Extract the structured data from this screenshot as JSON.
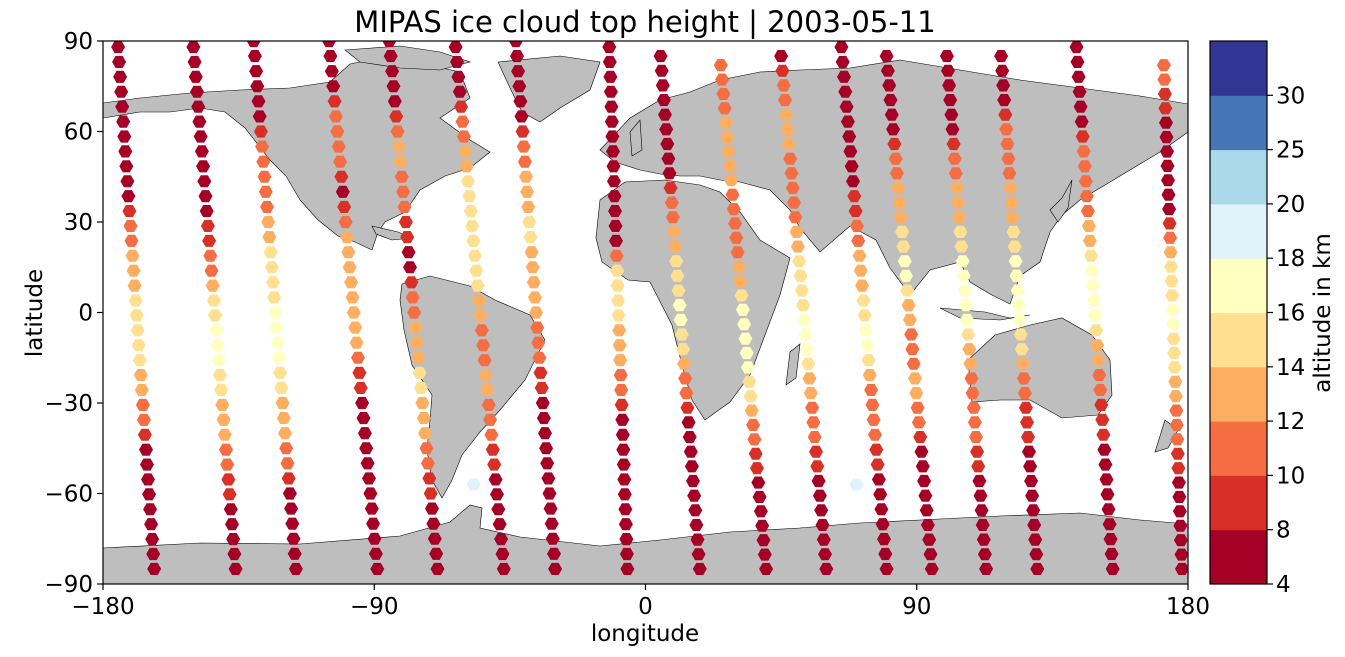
{
  "chart_data": {
    "type": "scatter",
    "title": "MIPAS ice cloud top height | 2003-05-11",
    "xlabel": "longitude",
    "ylabel": "latitude",
    "xlim": [
      -180,
      180
    ],
    "ylim": [
      -90,
      90
    ],
    "xticks": [
      -180,
      -90,
      0,
      90,
      180
    ],
    "xtick_labels": [
      "−180",
      "−90",
      "0",
      "90",
      "180"
    ],
    "yticks": [
      -90,
      -60,
      -30,
      0,
      30,
      60,
      90
    ],
    "ytick_labels": [
      "−90",
      "−60",
      "−30",
      "0",
      "30",
      "60",
      "90"
    ],
    "grid": false,
    "land_color": "#bebebe",
    "marker": "hexagon",
    "colorbar": {
      "label": "altitude in km",
      "bounds": [
        4,
        8,
        10,
        12,
        14,
        16,
        18,
        20,
        25,
        30
      ],
      "tick_labels": [
        "4",
        "8",
        "10",
        "12",
        "14",
        "16",
        "18",
        "20",
        "25",
        "30"
      ],
      "colors": [
        "#a50026",
        "#d73027",
        "#f46d43",
        "#fdae61",
        "#fee090",
        "#ffffbf",
        "#e0f3f8",
        "#abd9e9",
        "#4575b4",
        "#313695"
      ]
    },
    "orbits": [
      {
        "lon0": -175,
        "lat0": 88,
        "lon1": -163,
        "lat1": -85,
        "alt": [
          6,
          6,
          6,
          6,
          6,
          11,
          13,
          15,
          15,
          13,
          11,
          7,
          6,
          6,
          6
        ]
      },
      {
        "lon0": -150,
        "lat0": 88,
        "lon1": -136,
        "lat1": -85,
        "alt": [
          6,
          6,
          6,
          6,
          6,
          9,
          11,
          15,
          17,
          15,
          13,
          11,
          9,
          6,
          6
        ]
      },
      {
        "lon0": -130,
        "lat0": 90,
        "lon1": -116,
        "lat1": -85,
        "alt": [
          6,
          6,
          6,
          11,
          11,
          13,
          15,
          16,
          17,
          15,
          13,
          11,
          7,
          6,
          6
        ]
      },
      {
        "lon0": -105,
        "lat0": 90,
        "lon1": -89,
        "lat1": -85,
        "alt": [
          6,
          6,
          11,
          11,
          6,
          12,
          13,
          14,
          12,
          9,
          6,
          6,
          6,
          6,
          6
        ]
      },
      {
        "lon0": -85,
        "lat0": 90,
        "lon1": -69,
        "lat1": -85,
        "alt": [
          6,
          6,
          9,
          13,
          11,
          9,
          7,
          11,
          13,
          15,
          13,
          11,
          9,
          6,
          6
        ]
      },
      {
        "lon0": -63,
        "lat0": 88,
        "lon1": -47,
        "lat1": -85,
        "alt": [
          6,
          6,
          11,
          13,
          15,
          15,
          15,
          13,
          11,
          13,
          11,
          9,
          7,
          6,
          6
        ]
      },
      {
        "lon0": -43,
        "lat0": 90,
        "lon1": -30,
        "lat1": -85,
        "alt": [
          6,
          6,
          6,
          11,
          13,
          15,
          13,
          13,
          11,
          9,
          7,
          6,
          6,
          6,
          6
        ]
      },
      {
        "lon0": -12,
        "lat0": 88,
        "lon1": -6,
        "lat1": -85,
        "alt": [
          6,
          6,
          6,
          6,
          6,
          6,
          15,
          15,
          13,
          11,
          6,
          6,
          6,
          6,
          6
        ]
      },
      {
        "lon0": 5,
        "lat0": 85,
        "lon1": 18,
        "lat1": -85,
        "alt": [
          6,
          6,
          6,
          6,
          11,
          13,
          15,
          17,
          15,
          11,
          6,
          6,
          6,
          6,
          6
        ]
      },
      {
        "lon0": 25,
        "lat0": 82,
        "lon1": 40,
        "lat1": -85,
        "alt": [
          11,
          11,
          13,
          13,
          11,
          11,
          13,
          17,
          17,
          15,
          11,
          9,
          6,
          6,
          6
        ]
      },
      {
        "lon0": 45,
        "lat0": 85,
        "lon1": 60,
        "lat1": -85,
        "alt": [
          6,
          11,
          13,
          11,
          11,
          13,
          15,
          16,
          17,
          13,
          11,
          9,
          6,
          6,
          6
        ]
      },
      {
        "lon0": 65,
        "lat0": 88,
        "lon1": 80,
        "lat1": -85,
        "alt": [
          6,
          6,
          6,
          6,
          9,
          11,
          13,
          15,
          17,
          11,
          11,
          9,
          7,
          6,
          6
        ]
      },
      {
        "lon0": 80,
        "lat0": 85,
        "lon1": 95,
        "lat1": -85,
        "alt": [
          6,
          6,
          6,
          11,
          13,
          15,
          17,
          13,
          11,
          13,
          11,
          6,
          6,
          6,
          6
        ]
      },
      {
        "lon0": 100,
        "lat0": 85,
        "lon1": 113,
        "lat1": -85,
        "alt": [
          6,
          6,
          6,
          11,
          13,
          15,
          17,
          17,
          13,
          11,
          11,
          9,
          6,
          6,
          6
        ]
      },
      {
        "lon0": 118,
        "lat0": 85,
        "lon1": 130,
        "lat1": -85,
        "alt": [
          6,
          6,
          11,
          11,
          13,
          15,
          17,
          17,
          15,
          11,
          9,
          7,
          6,
          6,
          6
        ]
      },
      {
        "lon0": 143,
        "lat0": 88,
        "lon1": 155,
        "lat1": -85,
        "alt": [
          6,
          6,
          6,
          11,
          11,
          13,
          16,
          17,
          13,
          11,
          9,
          7,
          6,
          6,
          6
        ]
      },
      {
        "lon0": 172,
        "lat0": 82,
        "lon1": 178,
        "lat1": -85,
        "alt": [
          11,
          9,
          6,
          6,
          6,
          13,
          15,
          17,
          15,
          13,
          11,
          9,
          6,
          6,
          6
        ]
      }
    ],
    "isolated_points": [
      {
        "lon": -57,
        "lat": -57,
        "alt": 19
      },
      {
        "lon": 70,
        "lat": -57,
        "alt": 19
      }
    ]
  }
}
